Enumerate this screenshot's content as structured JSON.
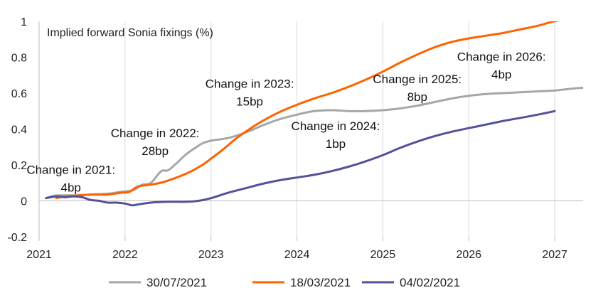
{
  "chart_data": {
    "type": "line",
    "title": "Implied forward Sonia fixings (%)",
    "xlabel": "",
    "ylabel": "",
    "xlim": [
      2021,
      2027.33
    ],
    "ylim": [
      -0.2,
      1
    ],
    "x_ticks": [
      "2021",
      "2022",
      "2023",
      "2024",
      "2025",
      "2026",
      "2027"
    ],
    "y_ticks": [
      "-0.2",
      "0",
      "0.2",
      "0.4",
      "0.6",
      "0.8",
      "1"
    ],
    "grid": "vertical",
    "legend_position": "bottom",
    "series": [
      {
        "name": "30/07/2021",
        "color": "#a6a6a6",
        "points": [
          [
            2021.08,
            0.015
          ],
          [
            2021.2,
            0.03
          ],
          [
            2021.4,
            0.03
          ],
          [
            2021.6,
            0.035
          ],
          [
            2021.8,
            0.04
          ],
          [
            2021.95,
            0.05
          ],
          [
            2022.05,
            0.055
          ],
          [
            2022.12,
            0.065
          ],
          [
            2022.2,
            0.09
          ],
          [
            2022.3,
            0.1
          ],
          [
            2022.42,
            0.165
          ],
          [
            2022.5,
            0.17
          ],
          [
            2022.6,
            0.21
          ],
          [
            2022.7,
            0.255
          ],
          [
            2022.8,
            0.29
          ],
          [
            2022.9,
            0.32
          ],
          [
            2023.0,
            0.335
          ],
          [
            2023.2,
            0.35
          ],
          [
            2023.4,
            0.38
          ],
          [
            2023.6,
            0.42
          ],
          [
            2023.8,
            0.455
          ],
          [
            2024.0,
            0.48
          ],
          [
            2024.2,
            0.5
          ],
          [
            2024.4,
            0.505
          ],
          [
            2024.6,
            0.5
          ],
          [
            2024.8,
            0.5
          ],
          [
            2025.0,
            0.505
          ],
          [
            2025.2,
            0.515
          ],
          [
            2025.4,
            0.53
          ],
          [
            2025.6,
            0.55
          ],
          [
            2025.8,
            0.57
          ],
          [
            2026.0,
            0.585
          ],
          [
            2026.2,
            0.595
          ],
          [
            2026.4,
            0.6
          ],
          [
            2026.6,
            0.605
          ],
          [
            2026.8,
            0.61
          ],
          [
            2027.0,
            0.615
          ],
          [
            2027.2,
            0.625
          ],
          [
            2027.33,
            0.63
          ]
        ]
      },
      {
        "name": "18/03/2021",
        "color": "#ff6200",
        "points": [
          [
            2021.2,
            0.015
          ],
          [
            2021.3,
            0.025
          ],
          [
            2021.45,
            0.03
          ],
          [
            2021.6,
            0.035
          ],
          [
            2021.8,
            0.035
          ],
          [
            2021.95,
            0.045
          ],
          [
            2022.05,
            0.05
          ],
          [
            2022.15,
            0.08
          ],
          [
            2022.3,
            0.09
          ],
          [
            2022.45,
            0.105
          ],
          [
            2022.6,
            0.13
          ],
          [
            2022.75,
            0.16
          ],
          [
            2022.9,
            0.2
          ],
          [
            2023.0,
            0.235
          ],
          [
            2023.15,
            0.29
          ],
          [
            2023.3,
            0.35
          ],
          [
            2023.45,
            0.4
          ],
          [
            2023.6,
            0.445
          ],
          [
            2023.8,
            0.495
          ],
          [
            2024.0,
            0.535
          ],
          [
            2024.2,
            0.57
          ],
          [
            2024.4,
            0.6
          ],
          [
            2024.6,
            0.635
          ],
          [
            2024.8,
            0.675
          ],
          [
            2025.0,
            0.72
          ],
          [
            2025.2,
            0.77
          ],
          [
            2025.4,
            0.815
          ],
          [
            2025.6,
            0.855
          ],
          [
            2025.8,
            0.885
          ],
          [
            2026.0,
            0.905
          ],
          [
            2026.2,
            0.92
          ],
          [
            2026.4,
            0.935
          ],
          [
            2026.6,
            0.955
          ],
          [
            2026.8,
            0.975
          ],
          [
            2026.95,
            0.995
          ],
          [
            2027.05,
            1.005
          ]
        ]
      },
      {
        "name": "04/02/2021",
        "color": "#525199",
        "points": [
          [
            2021.08,
            0.015
          ],
          [
            2021.2,
            0.025
          ],
          [
            2021.3,
            0.02
          ],
          [
            2021.4,
            0.025
          ],
          [
            2021.5,
            0.02
          ],
          [
            2021.6,
            0.005
          ],
          [
            2021.7,
            0.0
          ],
          [
            2021.8,
            -0.01
          ],
          [
            2021.9,
            -0.01
          ],
          [
            2022.0,
            -0.015
          ],
          [
            2022.08,
            -0.025
          ],
          [
            2022.15,
            -0.02
          ],
          [
            2022.3,
            -0.01
          ],
          [
            2022.5,
            -0.005
          ],
          [
            2022.7,
            -0.005
          ],
          [
            2022.85,
            0.0
          ],
          [
            2023.0,
            0.015
          ],
          [
            2023.2,
            0.045
          ],
          [
            2023.4,
            0.07
          ],
          [
            2023.6,
            0.095
          ],
          [
            2023.8,
            0.115
          ],
          [
            2024.0,
            0.13
          ],
          [
            2024.2,
            0.145
          ],
          [
            2024.4,
            0.165
          ],
          [
            2024.6,
            0.19
          ],
          [
            2024.8,
            0.22
          ],
          [
            2025.0,
            0.255
          ],
          [
            2025.2,
            0.295
          ],
          [
            2025.4,
            0.33
          ],
          [
            2025.6,
            0.36
          ],
          [
            2025.8,
            0.385
          ],
          [
            2026.0,
            0.405
          ],
          [
            2026.2,
            0.425
          ],
          [
            2026.4,
            0.445
          ],
          [
            2026.6,
            0.462
          ],
          [
            2026.8,
            0.48
          ],
          [
            2027.0,
            0.5
          ]
        ]
      }
    ],
    "annotations": [
      {
        "id": "2021",
        "lines": [
          "Change in 2021:",
          "4bp"
        ],
        "x": 2021.37,
        "y": 0.15
      },
      {
        "id": "2022",
        "lines": [
          "Change in 2022:",
          "28bp"
        ],
        "x": 2022.35,
        "y": 0.355
      },
      {
        "id": "2023",
        "lines": [
          "Change in 2023:",
          "15bp"
        ],
        "x": 2023.45,
        "y": 0.63
      },
      {
        "id": "2024",
        "lines": [
          "Change in 2024:",
          "1bp"
        ],
        "x": 2024.45,
        "y": 0.395
      },
      {
        "id": "2025",
        "lines": [
          "Change in 2025:",
          "8bp"
        ],
        "x": 2025.4,
        "y": 0.655
      },
      {
        "id": "2026",
        "lines": [
          "Change in 2026:",
          "4bp"
        ],
        "x": 2026.38,
        "y": 0.78
      }
    ]
  }
}
